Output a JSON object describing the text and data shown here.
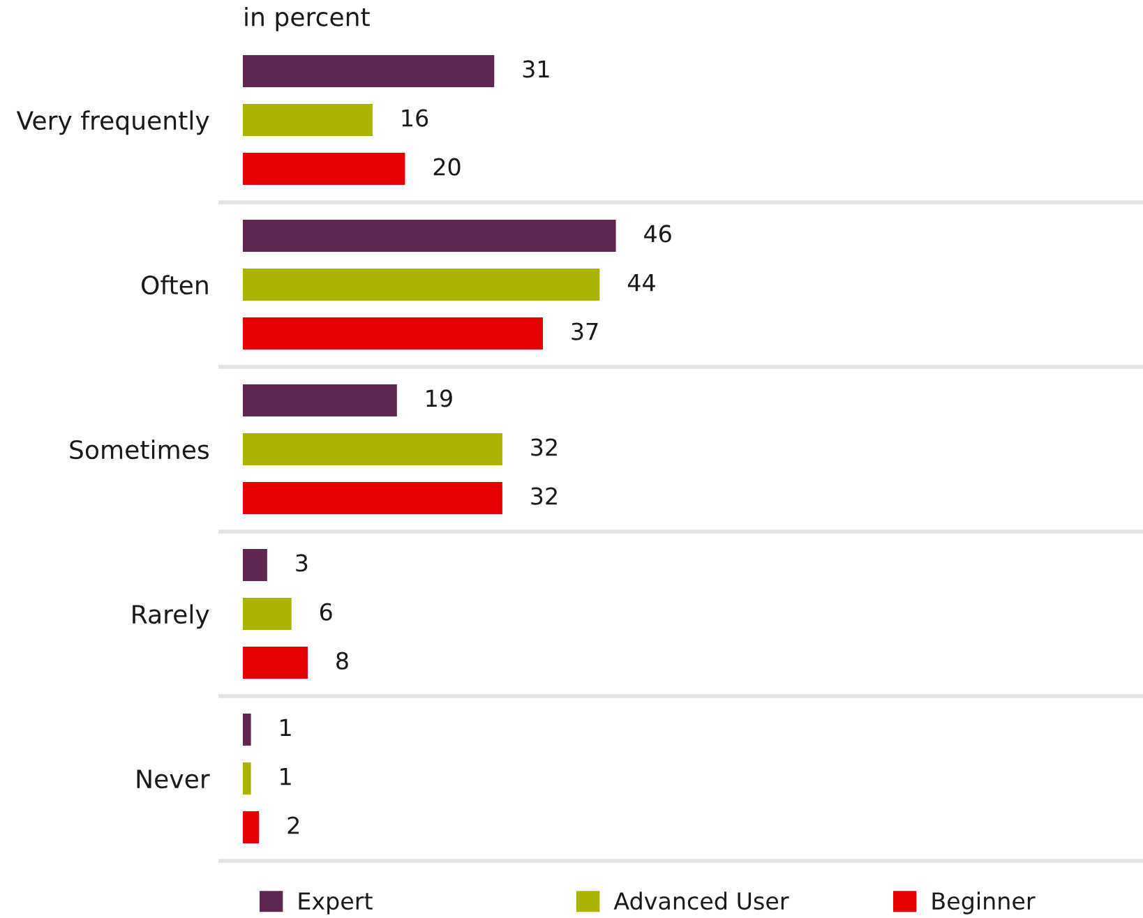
{
  "chart_data": {
    "type": "bar",
    "orientation": "horizontal",
    "title": "in percent",
    "categories": [
      "Very frequently",
      "Often",
      "Sometimes",
      "Rarely",
      "Never"
    ],
    "series": [
      {
        "name": "Expert",
        "color": "#5e2750",
        "values": [
          31,
          46,
          19,
          3,
          1
        ]
      },
      {
        "name": "Advanced User",
        "color": "#a8b400",
        "values": [
          16,
          44,
          32,
          6,
          1
        ]
      },
      {
        "name": "Beginner",
        "color": "#e60000",
        "values": [
          20,
          37,
          32,
          8,
          2
        ]
      }
    ],
    "xlim": [
      0,
      111
    ],
    "data_labels": true,
    "tick_labels": "y",
    "grid": "y",
    "legend": "bottom"
  }
}
